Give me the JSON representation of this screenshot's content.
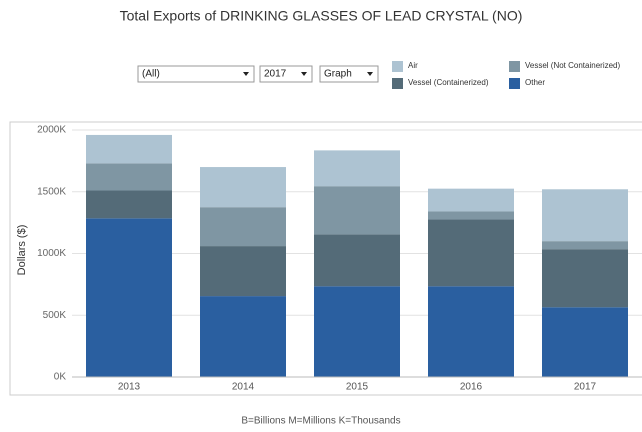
{
  "chart_data": {
    "type": "stacked_bar",
    "title": "Total Exports of DRINKING GLASSES OF LEAD CRYSTAL (NO)",
    "filters": [
      "(All)",
      "2017",
      "Graph"
    ],
    "y_label": "Dollars ($)",
    "footnote": "B=Billions M=Millions K=Thousands",
    "categories": [
      "2013",
      "2014",
      "2015",
      "2016",
      "2017"
    ],
    "series": [
      {
        "name": "Air",
        "color": "#adc3d2",
        "values": [
          230,
          325,
          290,
          185,
          420
        ]
      },
      {
        "name": "Vessel (Not Containerized)",
        "color": "#7f96a3",
        "values": [
          220,
          315,
          390,
          65,
          65
        ]
      },
      {
        "name": "Vessel (Containerized)",
        "color": "#546b78",
        "values": [
          225,
          405,
          420,
          540,
          470
        ]
      },
      {
        "name": "Other",
        "color": "#2a5fa0",
        "values": [
          1285,
          655,
          735,
          735,
          565
        ]
      }
    ],
    "ylim": [
      0,
      2000
    ],
    "yticks": [
      {
        "value": 0,
        "label": "0K"
      },
      {
        "value": 500,
        "label": "500K"
      },
      {
        "value": 1000,
        "label": "1000K"
      },
      {
        "value": 1500,
        "label": "1500K"
      },
      {
        "value": 2000,
        "label": "2000K"
      }
    ],
    "grid": true
  }
}
